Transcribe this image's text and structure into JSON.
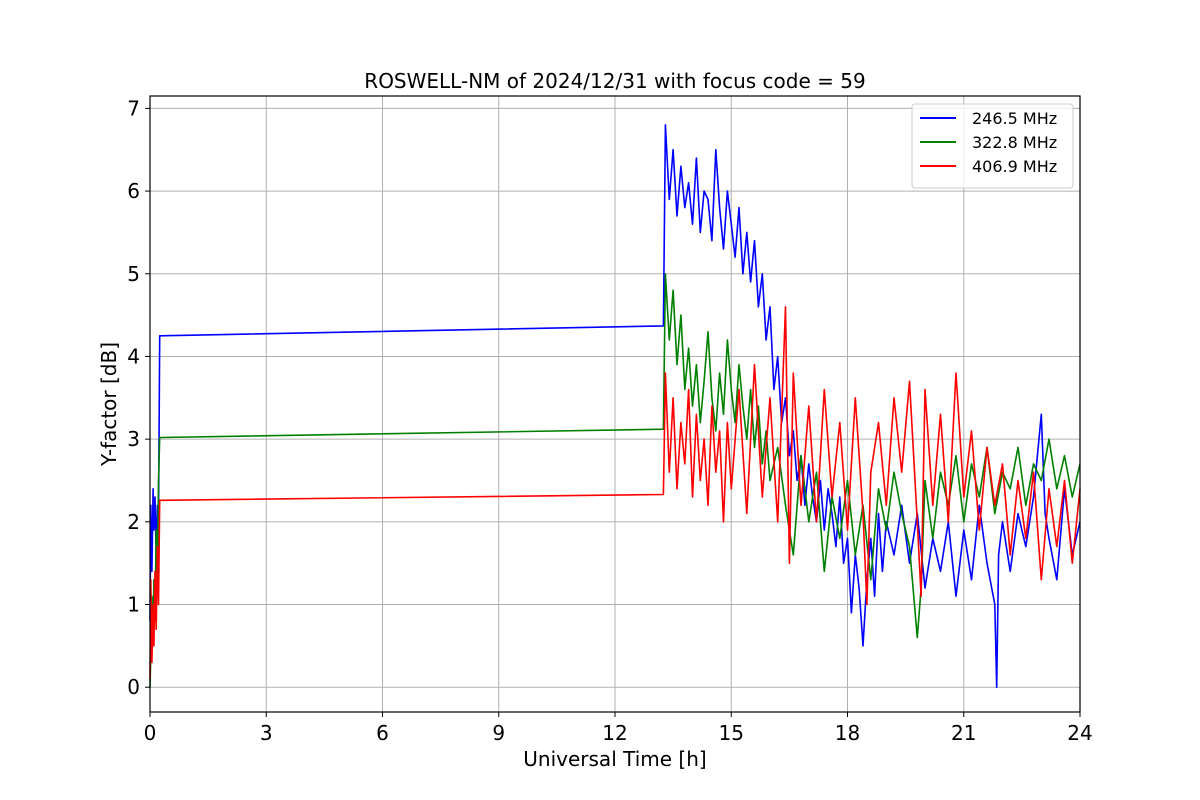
{
  "chart_data": {
    "type": "line",
    "title": "ROSWELL-NM of 2024/12/31 with focus code = 59",
    "xlabel": "Universal Time [h]",
    "ylabel": "Y-factor [dB]",
    "xlim": [
      0,
      24
    ],
    "ylim": [
      -0.3,
      7.15
    ],
    "xticks": [
      "0",
      "3",
      "6",
      "9",
      "12",
      "15",
      "18",
      "21",
      "24"
    ],
    "yticks": [
      "0",
      "1",
      "2",
      "3",
      "4",
      "5",
      "6",
      "7"
    ],
    "grid": true,
    "legend_position": "top-right",
    "series": [
      {
        "name": "246.5 MHz",
        "color": "#0000ff",
        "x": [
          0.0,
          0.02,
          0.05,
          0.08,
          0.1,
          0.13,
          0.16,
          0.19,
          0.22,
          0.25,
          13.25,
          13.3,
          13.4,
          13.5,
          13.6,
          13.7,
          13.8,
          13.9,
          14.0,
          14.1,
          14.2,
          14.3,
          14.4,
          14.5,
          14.6,
          14.7,
          14.8,
          14.9,
          15.0,
          15.1,
          15.2,
          15.3,
          15.4,
          15.5,
          15.6,
          15.7,
          15.8,
          15.9,
          16.0,
          16.1,
          16.2,
          16.3,
          16.4,
          16.5,
          16.6,
          16.7,
          16.8,
          16.9,
          17.0,
          17.1,
          17.2,
          17.3,
          17.4,
          17.5,
          17.6,
          17.7,
          17.8,
          17.9,
          18.0,
          18.1,
          18.2,
          18.3,
          18.4,
          18.5,
          18.6,
          18.7,
          18.8,
          18.9,
          19.0,
          19.2,
          19.4,
          19.6,
          19.8,
          20.0,
          20.2,
          20.4,
          20.6,
          20.8,
          21.0,
          21.2,
          21.4,
          21.6,
          21.8,
          21.85,
          21.9,
          22.0,
          22.2,
          22.4,
          22.6,
          22.8,
          23.0,
          23.1,
          23.2,
          23.4,
          23.6,
          23.8,
          24.0
        ],
        "y": [
          0.8,
          2.2,
          1.4,
          2.4,
          1.9,
          2.3,
          1.6,
          2.2,
          2.0,
          4.25,
          4.37,
          6.8,
          5.9,
          6.5,
          5.7,
          6.3,
          5.8,
          6.1,
          5.6,
          6.4,
          5.5,
          6.0,
          5.9,
          5.4,
          6.5,
          5.8,
          5.3,
          6.0,
          5.6,
          5.2,
          5.8,
          5.0,
          5.5,
          4.9,
          5.4,
          4.6,
          5.0,
          4.2,
          4.6,
          3.6,
          4.0,
          3.2,
          3.5,
          2.8,
          3.1,
          2.5,
          2.8,
          2.2,
          2.7,
          2.3,
          2.0,
          2.5,
          1.9,
          2.4,
          2.1,
          1.7,
          2.3,
          1.5,
          1.8,
          0.9,
          1.6,
          1.2,
          0.5,
          1.3,
          1.8,
          1.1,
          2.1,
          1.4,
          2.0,
          1.6,
          2.2,
          1.5,
          2.1,
          1.2,
          1.8,
          1.4,
          2.0,
          1.1,
          1.9,
          1.3,
          2.2,
          1.5,
          1.0,
          0.0,
          1.6,
          2.0,
          1.4,
          2.1,
          1.7,
          2.3,
          3.3,
          2.1,
          1.8,
          1.3,
          2.4,
          1.6,
          2.0
        ]
      },
      {
        "name": "322.8 MHz",
        "color": "#008000",
        "x": [
          0.0,
          0.02,
          0.05,
          0.08,
          0.1,
          0.13,
          0.16,
          0.19,
          0.22,
          0.25,
          13.25,
          13.3,
          13.4,
          13.5,
          13.6,
          13.7,
          13.8,
          13.9,
          14.0,
          14.1,
          14.2,
          14.3,
          14.4,
          14.5,
          14.6,
          14.7,
          14.8,
          14.9,
          15.0,
          15.1,
          15.2,
          15.3,
          15.4,
          15.5,
          15.6,
          15.7,
          15.8,
          15.9,
          16.0,
          16.2,
          16.4,
          16.6,
          16.8,
          17.0,
          17.2,
          17.4,
          17.6,
          17.8,
          18.0,
          18.2,
          18.4,
          18.6,
          18.8,
          19.0,
          19.2,
          19.4,
          19.6,
          19.8,
          19.9,
          20.0,
          20.2,
          20.4,
          20.6,
          20.8,
          21.0,
          21.2,
          21.4,
          21.6,
          21.8,
          22.0,
          22.2,
          22.4,
          22.6,
          22.8,
          23.0,
          23.2,
          23.4,
          23.6,
          23.8,
          24.0
        ],
        "y": [
          0.0,
          0.4,
          1.1,
          0.6,
          1.3,
          0.8,
          1.9,
          1.2,
          2.5,
          3.02,
          3.12,
          5.0,
          4.2,
          4.8,
          3.9,
          4.5,
          3.6,
          4.1,
          3.4,
          3.9,
          3.2,
          3.7,
          4.3,
          3.5,
          3.1,
          3.8,
          3.3,
          4.2,
          3.6,
          3.2,
          3.9,
          3.4,
          3.0,
          3.6,
          2.9,
          3.4,
          2.7,
          3.1,
          2.5,
          2.9,
          2.2,
          1.6,
          2.8,
          2.0,
          2.6,
          1.4,
          2.3,
          1.8,
          2.5,
          1.6,
          2.2,
          1.3,
          2.4,
          1.9,
          2.6,
          2.1,
          1.7,
          0.6,
          1.2,
          2.5,
          1.8,
          2.6,
          2.2,
          2.8,
          2.0,
          2.7,
          2.3,
          2.9,
          2.1,
          2.6,
          2.4,
          2.9,
          2.2,
          2.7,
          2.5,
          3.0,
          2.4,
          2.8,
          2.3,
          2.7
        ]
      },
      {
        "name": "406.9 MHz",
        "color": "#ff0000",
        "x": [
          0.0,
          0.02,
          0.05,
          0.08,
          0.1,
          0.13,
          0.16,
          0.19,
          0.22,
          0.25,
          13.25,
          13.3,
          13.4,
          13.5,
          13.6,
          13.7,
          13.8,
          13.9,
          14.0,
          14.1,
          14.2,
          14.3,
          14.4,
          14.5,
          14.6,
          14.7,
          14.8,
          14.9,
          15.0,
          15.2,
          15.4,
          15.6,
          15.8,
          16.0,
          16.2,
          16.4,
          16.5,
          16.6,
          16.8,
          17.0,
          17.2,
          17.4,
          17.6,
          17.8,
          18.0,
          18.2,
          18.4,
          18.5,
          18.6,
          18.8,
          19.0,
          19.2,
          19.4,
          19.6,
          19.8,
          19.9,
          20.0,
          20.2,
          20.4,
          20.6,
          20.8,
          21.0,
          21.2,
          21.4,
          21.6,
          21.8,
          22.0,
          22.2,
          22.4,
          22.6,
          22.8,
          23.0,
          23.2,
          23.4,
          23.6,
          23.8,
          24.0
        ],
        "y": [
          0.1,
          1.3,
          0.3,
          1.0,
          0.5,
          1.4,
          0.7,
          1.7,
          1.0,
          2.26,
          2.33,
          3.8,
          2.6,
          3.5,
          2.4,
          3.2,
          2.7,
          3.6,
          2.3,
          3.3,
          2.5,
          3.0,
          2.2,
          3.4,
          2.6,
          3.1,
          2.0,
          3.2,
          2.4,
          3.6,
          2.1,
          3.9,
          2.3,
          3.5,
          2.0,
          4.6,
          1.5,
          3.8,
          2.2,
          3.4,
          2.0,
          3.6,
          2.3,
          3.2,
          1.9,
          3.5,
          2.1,
          1.0,
          2.6,
          3.2,
          2.2,
          3.5,
          2.6,
          3.7,
          2.0,
          1.1,
          3.6,
          2.2,
          3.3,
          2.0,
          3.8,
          2.3,
          3.1,
          1.9,
          2.9,
          2.2,
          2.7,
          1.6,
          2.5,
          1.8,
          2.6,
          1.3,
          2.4,
          1.7,
          2.5,
          1.5,
          2.4
        ]
      }
    ]
  }
}
